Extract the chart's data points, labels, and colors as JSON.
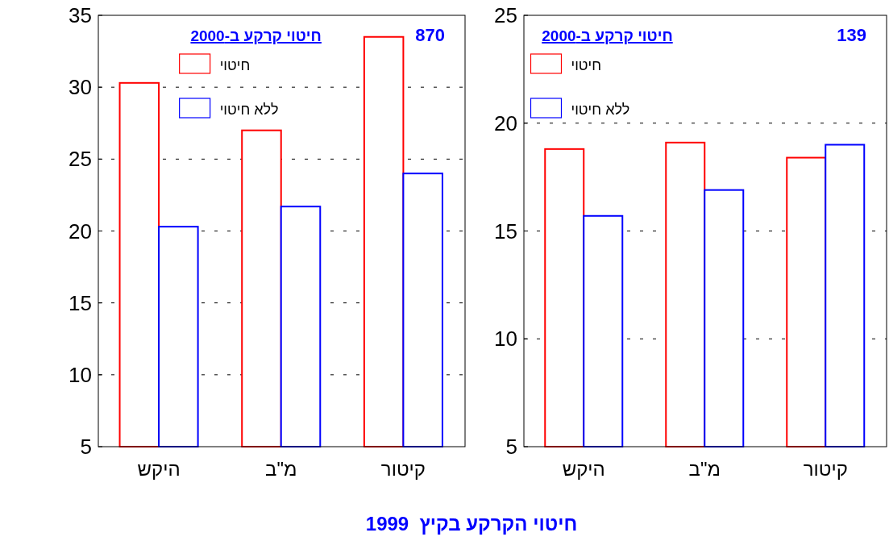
{
  "chart_data": [
    {
      "type": "bar",
      "categories": [
        "היקש",
        "מ\"ב",
        "קיטור"
      ],
      "legend_title": "חיטוי קרקע ב-2000",
      "legend": "top",
      "grid": "y",
      "ylim": [
        5,
        35
      ],
      "yticks": [
        5,
        10,
        15,
        20,
        25,
        30,
        35
      ],
      "annotations": [
        "870",
        "חיטוי הקרקע בקיץ  1999"
      ],
      "series": [
        {
          "name": "חיטוי",
          "color": "#ff0000",
          "values": [
            30.3,
            27.0,
            33.5
          ]
        },
        {
          "name": "ללא חיטוי",
          "color": "#0000ff",
          "values": [
            20.3,
            21.7,
            24.0
          ]
        }
      ]
    },
    {
      "type": "bar",
      "categories": [
        "היקש",
        "מ\"ב",
        "קיטור"
      ],
      "legend_title": "חיטוי קרקע ב-2000",
      "legend": "top left",
      "grid": "y",
      "ylim": [
        5,
        25
      ],
      "yticks": [
        5,
        10,
        15,
        20,
        25
      ],
      "annotations": [
        "139"
      ],
      "series": [
        {
          "name": "חיטוי",
          "color": "#ff0000",
          "values": [
            18.8,
            19.1,
            18.4
          ]
        },
        {
          "name": "ללא חיטוי",
          "color": "#0000ff",
          "values": [
            15.7,
            16.9,
            19.0
          ]
        }
      ]
    }
  ]
}
